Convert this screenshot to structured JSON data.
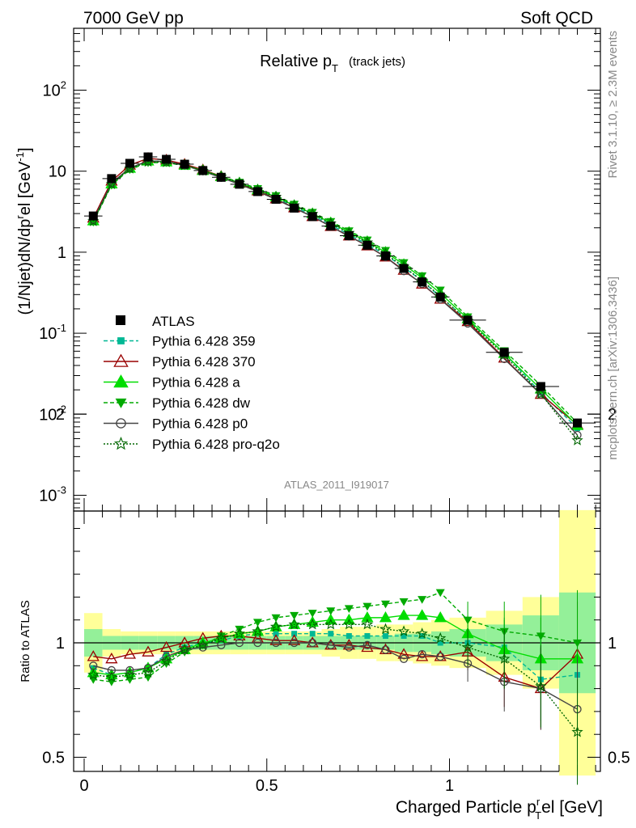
{
  "header": {
    "left": "7000 GeV pp",
    "right": "Soft QCD"
  },
  "side_texts": {
    "rivet": "Rivet 3.1.10, ≥ 2.3M events",
    "mcplots": "mcplots.cern.ch [arXiv:1306.3436]"
  },
  "watermark": "ATLAS_2011_I919017",
  "chart_data": {
    "type": "line",
    "title_main": "Relative p",
    "title_sub": "T",
    "title_note": "(track jets)",
    "ylabel": "(1/Njet)dN/dp",
    "ylabel_sup": "r",
    "ylabel_mid": "el [GeV",
    "ylabel_sup2": "-1",
    "ylabel_end": "]",
    "xlabel": "Charged Particle p",
    "xlabel_sup": "r",
    "xlabel_sub": "T",
    "xlabel_end": "el [GeV]",
    "ratio_ylabel": "Ratio to ATLAS",
    "yscale": "log",
    "ylim": [
      0.0006,
      600
    ],
    "ratio_ylim": [
      0.3,
      2.3
    ],
    "xlim": [
      -0.03,
      1.42
    ],
    "x_tick_labels": [
      "0",
      "0.5",
      "1"
    ],
    "x_ticks": [
      0,
      0.5,
      1
    ],
    "y_tick_labels": [
      {
        "v": 0.001,
        "base": "10",
        "exp": "-3"
      },
      {
        "v": 0.01,
        "base": "10",
        "exp": "-2"
      },
      {
        "v": 0.1,
        "base": "10",
        "exp": "-1"
      },
      {
        "v": 1,
        "base": "1",
        "exp": ""
      },
      {
        "v": 10,
        "base": "10",
        "exp": ""
      },
      {
        "v": 100,
        "base": "10",
        "exp": "2"
      }
    ],
    "ratio_tick_labels": [
      "0.5",
      "1",
      "2"
    ],
    "ratio_ticks": [
      0.5,
      1,
      2
    ],
    "x": [
      0.025,
      0.075,
      0.125,
      0.175,
      0.225,
      0.275,
      0.325,
      0.375,
      0.425,
      0.475,
      0.525,
      0.575,
      0.625,
      0.675,
      0.725,
      0.775,
      0.825,
      0.875,
      0.925,
      0.975,
      1.05,
      1.15,
      1.25,
      1.35
    ],
    "bins": [
      0,
      0.05,
      0.1,
      0.15,
      0.2,
      0.25,
      0.3,
      0.35,
      0.4,
      0.45,
      0.5,
      0.55,
      0.6,
      0.65,
      0.7,
      0.75,
      0.8,
      0.85,
      0.9,
      0.95,
      1.0,
      1.1,
      1.2,
      1.3,
      1.4
    ],
    "data": {
      "name": "ATLAS",
      "values": [
        2.8,
        8.1,
        12.5,
        15.0,
        14.0,
        12.2,
        10.2,
        8.4,
        6.9,
        5.6,
        4.5,
        3.5,
        2.75,
        2.1,
        1.6,
        1.22,
        0.9,
        0.63,
        0.43,
        0.28,
        0.145,
        0.058,
        0.022,
        0.0078
      ],
      "band_inner": [
        0.06,
        0.03,
        0.03,
        0.03,
        0.03,
        0.03,
        0.03,
        0.03,
        0.03,
        0.03,
        0.03,
        0.03,
        0.03,
        0.03,
        0.03,
        0.03,
        0.03,
        0.04,
        0.04,
        0.05,
        0.06,
        0.08,
        0.12,
        0.22
      ],
      "band_outer": [
        0.13,
        0.06,
        0.05,
        0.05,
        0.05,
        0.05,
        0.05,
        0.05,
        0.05,
        0.05,
        0.05,
        0.05,
        0.05,
        0.06,
        0.07,
        0.07,
        0.08,
        0.08,
        0.09,
        0.1,
        0.11,
        0.14,
        0.2,
        0.58
      ]
    },
    "series": [
      {
        "name": "Pythia 6.428 359",
        "color": "#00b894",
        "dash": "5,3",
        "marker": "square",
        "ratio": [
          0.89,
          0.86,
          0.87,
          0.89,
          0.95,
          0.98,
          1.0,
          1.01,
          1.03,
          1.04,
          1.04,
          1.04,
          1.04,
          1.04,
          1.03,
          1.03,
          1.03,
          1.03,
          1.03,
          1.0,
          1.0,
          0.98,
          0.84,
          0.86
        ]
      },
      {
        "name": "Pythia 6.428 370",
        "color": "#990000",
        "dash": "",
        "marker": "triangle-open",
        "ratio": [
          0.94,
          0.93,
          0.95,
          0.96,
          0.98,
          1.0,
          1.02,
          1.03,
          1.03,
          1.02,
          1.01,
          1.01,
          1.0,
          0.99,
          0.99,
          0.98,
          0.97,
          0.95,
          0.94,
          0.94,
          0.96,
          0.85,
          0.8,
          0.95
        ]
      },
      {
        "name": "Pythia 6.428 a",
        "color": "#00dd00",
        "dash": "",
        "marker": "triangle",
        "ratio": [
          0.87,
          0.86,
          0.87,
          0.89,
          0.93,
          0.97,
          1.0,
          1.02,
          1.04,
          1.05,
          1.07,
          1.08,
          1.09,
          1.1,
          1.1,
          1.11,
          1.11,
          1.12,
          1.12,
          1.11,
          1.04,
          0.97,
          0.93,
          0.93
        ]
      },
      {
        "name": "Pythia 6.428 dw",
        "color": "#00aa00",
        "dash": "5,3",
        "marker": "triangle-down",
        "ratio": [
          0.84,
          0.83,
          0.84,
          0.85,
          0.91,
          0.96,
          0.99,
          1.03,
          1.06,
          1.09,
          1.11,
          1.12,
          1.13,
          1.14,
          1.15,
          1.16,
          1.17,
          1.18,
          1.19,
          1.22,
          1.1,
          1.05,
          1.03,
          1.0
        ]
      },
      {
        "name": "Pythia 6.428 p0",
        "color": "#444444",
        "dash": "",
        "marker": "circle-open",
        "ratio": [
          0.9,
          0.88,
          0.88,
          0.89,
          0.94,
          0.97,
          0.98,
          0.99,
          1.0,
          1.0,
          1.0,
          1.0,
          1.0,
          0.99,
          0.98,
          0.99,
          0.97,
          0.93,
          0.95,
          0.94,
          0.91,
          0.83,
          0.8,
          0.71
        ]
      },
      {
        "name": "Pythia 6.428 pro-q2o",
        "color": "#006600",
        "dash": "2,2",
        "marker": "star",
        "ratio": [
          0.86,
          0.85,
          0.86,
          0.87,
          0.92,
          0.97,
          0.99,
          1.02,
          1.04,
          1.05,
          1.07,
          1.08,
          1.08,
          1.08,
          1.08,
          1.08,
          1.06,
          1.05,
          1.04,
          1.02,
          0.98,
          0.93,
          0.81,
          0.61
        ]
      }
    ]
  }
}
